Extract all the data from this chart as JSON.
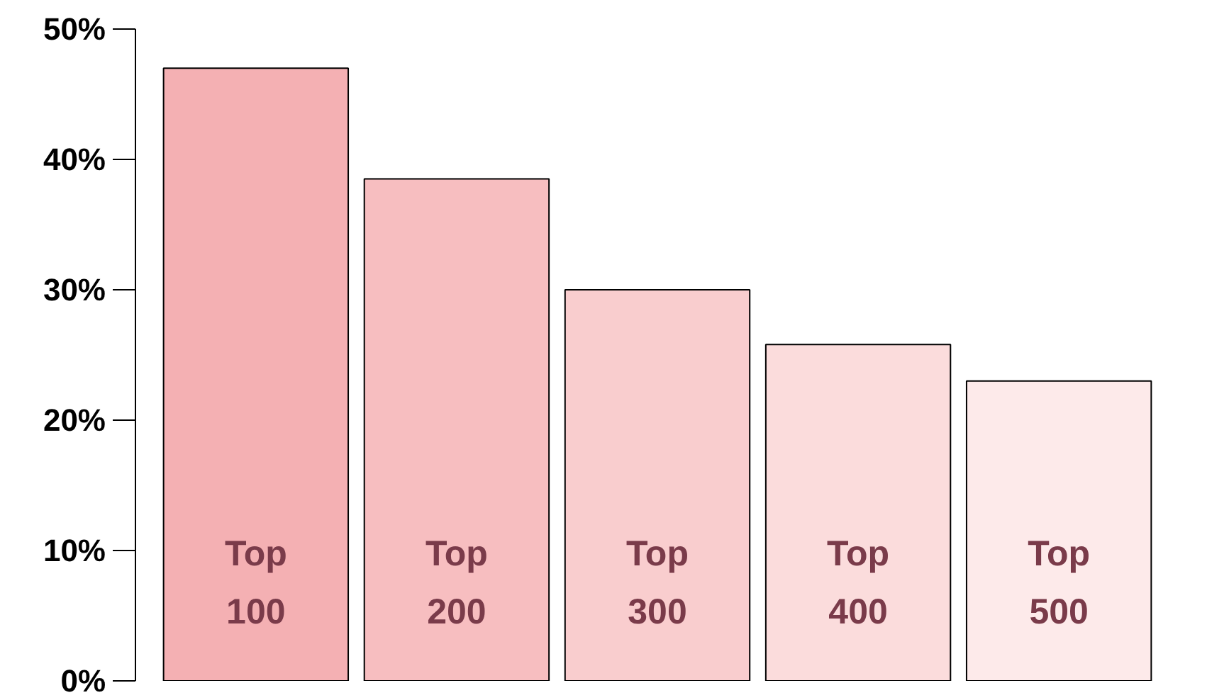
{
  "chart_data": {
    "type": "bar",
    "categories": [
      "Top 100",
      "Top 200",
      "Top 300",
      "Top 400",
      "Top 500"
    ],
    "values": [
      47,
      38.5,
      30,
      25.8,
      23
    ],
    "colors": [
      "#f4b0b3",
      "#f7bec0",
      "#f9cdce",
      "#fbdcdc",
      "#fdeaea"
    ],
    "ylim": [
      0,
      50
    ],
    "yticks": [
      {
        "value": 0,
        "label": "0%"
      },
      {
        "value": 10,
        "label": "10%"
      },
      {
        "value": 20,
        "label": "20%"
      },
      {
        "value": 30,
        "label": "30%"
      },
      {
        "value": 40,
        "label": "40%"
      },
      {
        "value": 50,
        "label": "50%"
      }
    ],
    "tick_labels": "y",
    "grid": false
  }
}
